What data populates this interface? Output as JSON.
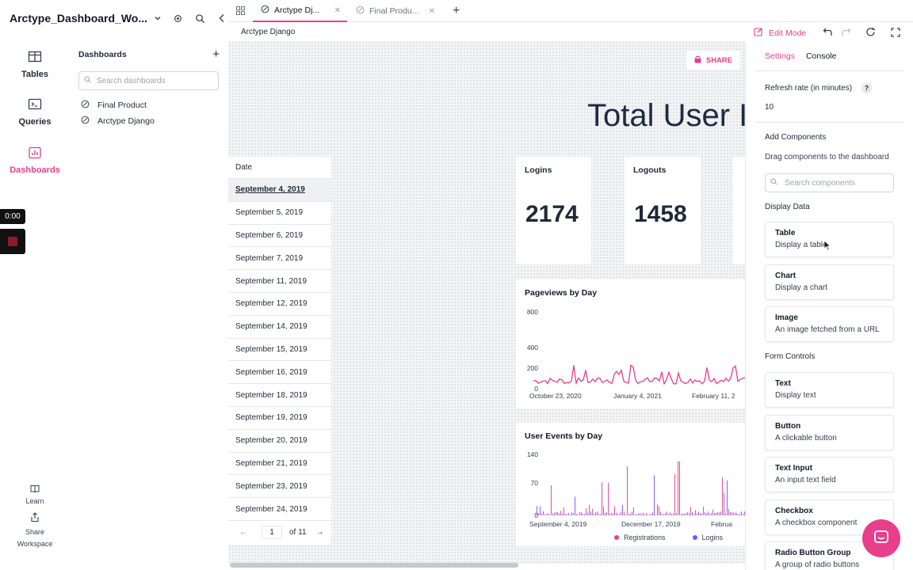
{
  "workspace": {
    "title": "Arctype_Dashboard_Wo..."
  },
  "nav": {
    "tables": "Tables",
    "queries": "Queries",
    "dashboards": "Dashboards",
    "learn": "Learn",
    "share": "Share",
    "workspace": "Workspace"
  },
  "recorder": {
    "time": "0:00"
  },
  "dashboards_panel": {
    "heading": "Dashboards",
    "search_placeholder": "Search dashboards",
    "items": [
      "Final Product",
      "Arctype Django"
    ]
  },
  "tabs": [
    {
      "label": "Arctype Dj..."
    },
    {
      "label": "Final Produ..."
    }
  ],
  "breadcrumb": "Arctype Django",
  "toolbar": {
    "edit_mode": "Edit Mode"
  },
  "canvas": {
    "share_label": "SHARE",
    "big_title": "Total User I",
    "table": {
      "header": "Date",
      "rows": [
        "September 4, 2019",
        "September 5, 2019",
        "September 6, 2019",
        "September 7, 2019",
        "September 11, 2019",
        "September 12, 2019",
        "September 14, 2019",
        "September 15, 2019",
        "September 16, 2019",
        "September 18, 2019",
        "September 19, 2019",
        "September 20, 2019",
        "September 21, 2019",
        "September 23, 2019",
        "September 24, 2019"
      ],
      "page": "1",
      "of": "of 11"
    },
    "metrics": [
      {
        "label": "Logins",
        "value": "2174"
      },
      {
        "label": "Logouts",
        "value": "1458"
      }
    ],
    "pageviews": {
      "title": "Pageviews by Day",
      "yticks": [
        "800",
        "400",
        "200",
        "0"
      ],
      "xticks": [
        "October 23, 2020",
        "January 4, 2021",
        "February 11, 2"
      ]
    },
    "events": {
      "title": "User Events by Day",
      "yticks": [
        "140",
        "70",
        "0"
      ],
      "xticks": [
        "September 4, 2019",
        "December 17, 2019",
        "Februa"
      ],
      "legend": [
        "Registrations",
        "Logins"
      ]
    }
  },
  "panel": {
    "tabs": [
      "Settings",
      "Console"
    ],
    "refresh_label": "Refresh rate (in minutes)",
    "refresh_value": "10",
    "add_components": "Add Components",
    "drag_hint": "Drag components to the dashboard",
    "search_placeholder": "Search components",
    "display_data": "Display Data",
    "display_items": [
      {
        "title": "Table",
        "desc": "Display a table"
      },
      {
        "title": "Chart",
        "desc": "Display a chart"
      },
      {
        "title": "Image",
        "desc": "An image fetched from a URL"
      }
    ],
    "form_controls": "Form Controls",
    "form_items": [
      {
        "title": "Text",
        "desc": "Display text"
      },
      {
        "title": "Button",
        "desc": "A clickable button"
      },
      {
        "title": "Text Input",
        "desc": "An input text field"
      },
      {
        "title": "Checkbox",
        "desc": "A checkbox component"
      },
      {
        "title": "Radio Button Group",
        "desc": "A group of radio buttons"
      }
    ]
  },
  "colors": {
    "accent": "#e83e8c",
    "purple": "#7c4dff"
  }
}
